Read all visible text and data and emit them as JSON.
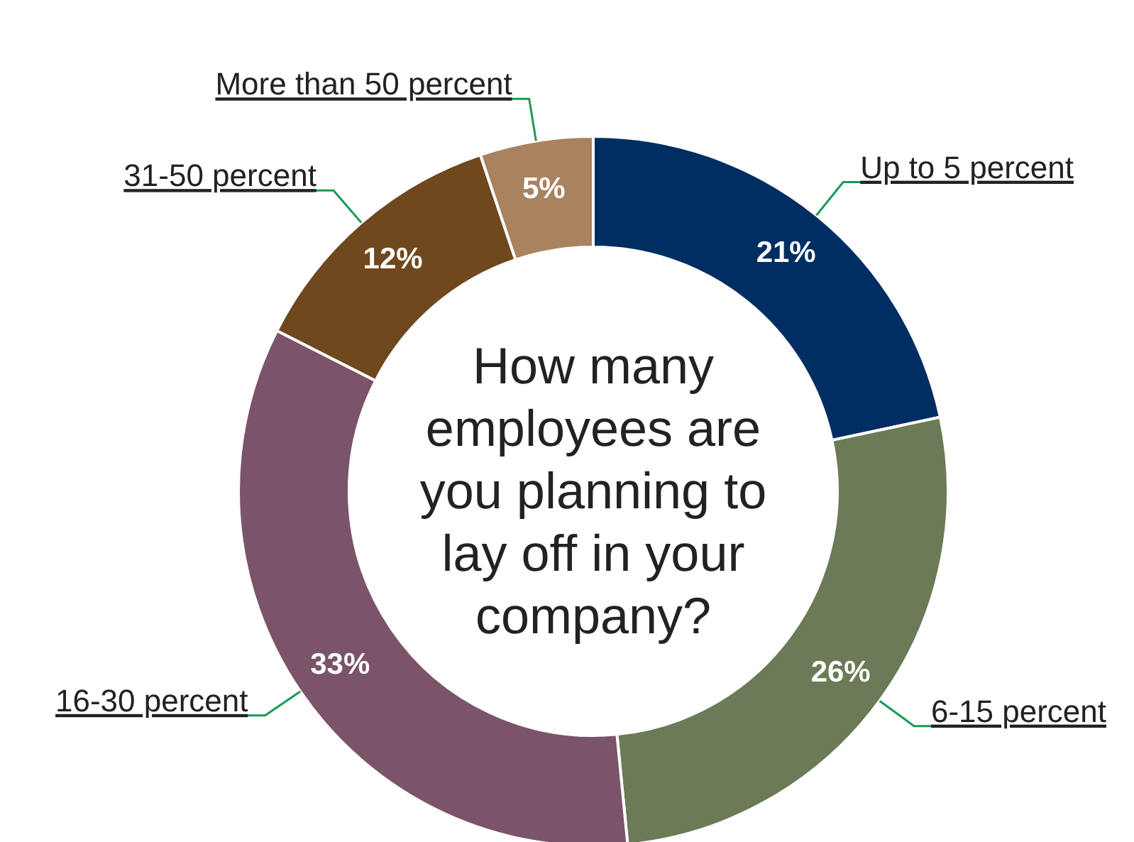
{
  "chart_data": {
    "type": "donut",
    "title": "How many employees are you planning to lay off in your company?",
    "categories": [
      "Up to 5 percent",
      "6-15 percent",
      "16-30 percent",
      "31-50 percent",
      "More than 50 percent"
    ],
    "values": [
      21,
      26,
      33,
      12,
      5
    ],
    "value_labels": [
      "21%",
      "26%",
      "33%",
      "12%",
      "5%"
    ],
    "colors": [
      "#002d62",
      "#6b7a57",
      "#7b5469",
      "#6f481e",
      "#a9825f"
    ]
  }
}
